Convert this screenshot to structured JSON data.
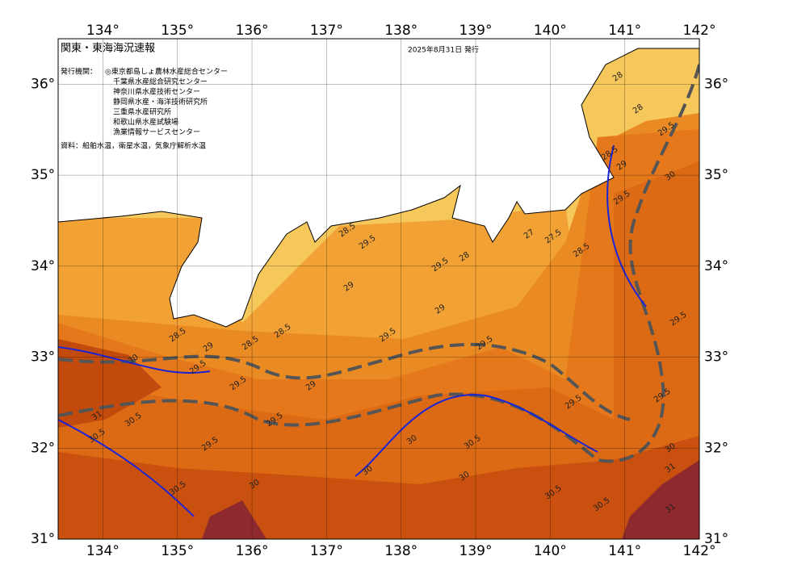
{
  "header": {
    "title": "関東・東海海況速報",
    "date": "2025年8月31日 発行"
  },
  "issuers": {
    "label": "発行機関：",
    "names": [
      "◎東京都島しょ農林水産総合センター",
      "千葉県水産総合研究センター",
      "神奈川県水産技術センター",
      "静岡県水産・海洋技術研究所",
      "三重県水産研究所",
      "和歌山県水産試験場",
      "漁業情報サービスセンター"
    ]
  },
  "source": "資料：船舶水温，衛星水温，気象庁解析水温",
  "map": {
    "xlim": [
      133.4,
      142
    ],
    "ylim": [
      31,
      36.5
    ],
    "xticks": [
      {
        "value": 134,
        "label": "134°"
      },
      {
        "value": 135,
        "label": "135°"
      },
      {
        "value": 136,
        "label": "136°"
      },
      {
        "value": 137,
        "label": "137°"
      },
      {
        "value": 138,
        "label": "138°"
      },
      {
        "value": 139,
        "label": "139°"
      },
      {
        "value": 140,
        "label": "140°"
      },
      {
        "value": 141,
        "label": "141°"
      },
      {
        "value": 142,
        "label": "142°"
      }
    ],
    "yticks": [
      {
        "value": 31,
        "label": "31°"
      },
      {
        "value": 32,
        "label": "32°"
      },
      {
        "value": 33,
        "label": "33°"
      },
      {
        "value": 34,
        "label": "34°"
      },
      {
        "value": 35,
        "label": "35°"
      },
      {
        "value": 36,
        "label": "36°"
      }
    ],
    "contour_labels": [
      "28",
      "28",
      "29.5",
      "28.5",
      "29",
      "29.5",
      "30",
      "28",
      "29.5",
      "28.5",
      "29.5",
      "29",
      "29",
      "29.5",
      "28.5",
      "28.5",
      "29",
      "28.5",
      "29.5",
      "30",
      "29.5",
      "29.5",
      "29",
      "29.5",
      "30.5",
      "31",
      "30.5",
      "29.5",
      "30",
      "30.5",
      "29.5",
      "30",
      "30.5",
      "30",
      "30",
      "30",
      "30.5",
      "30.5",
      "31",
      "31",
      "27.5",
      "27",
      "29.5",
      "29.5",
      "28.5"
    ]
  }
}
